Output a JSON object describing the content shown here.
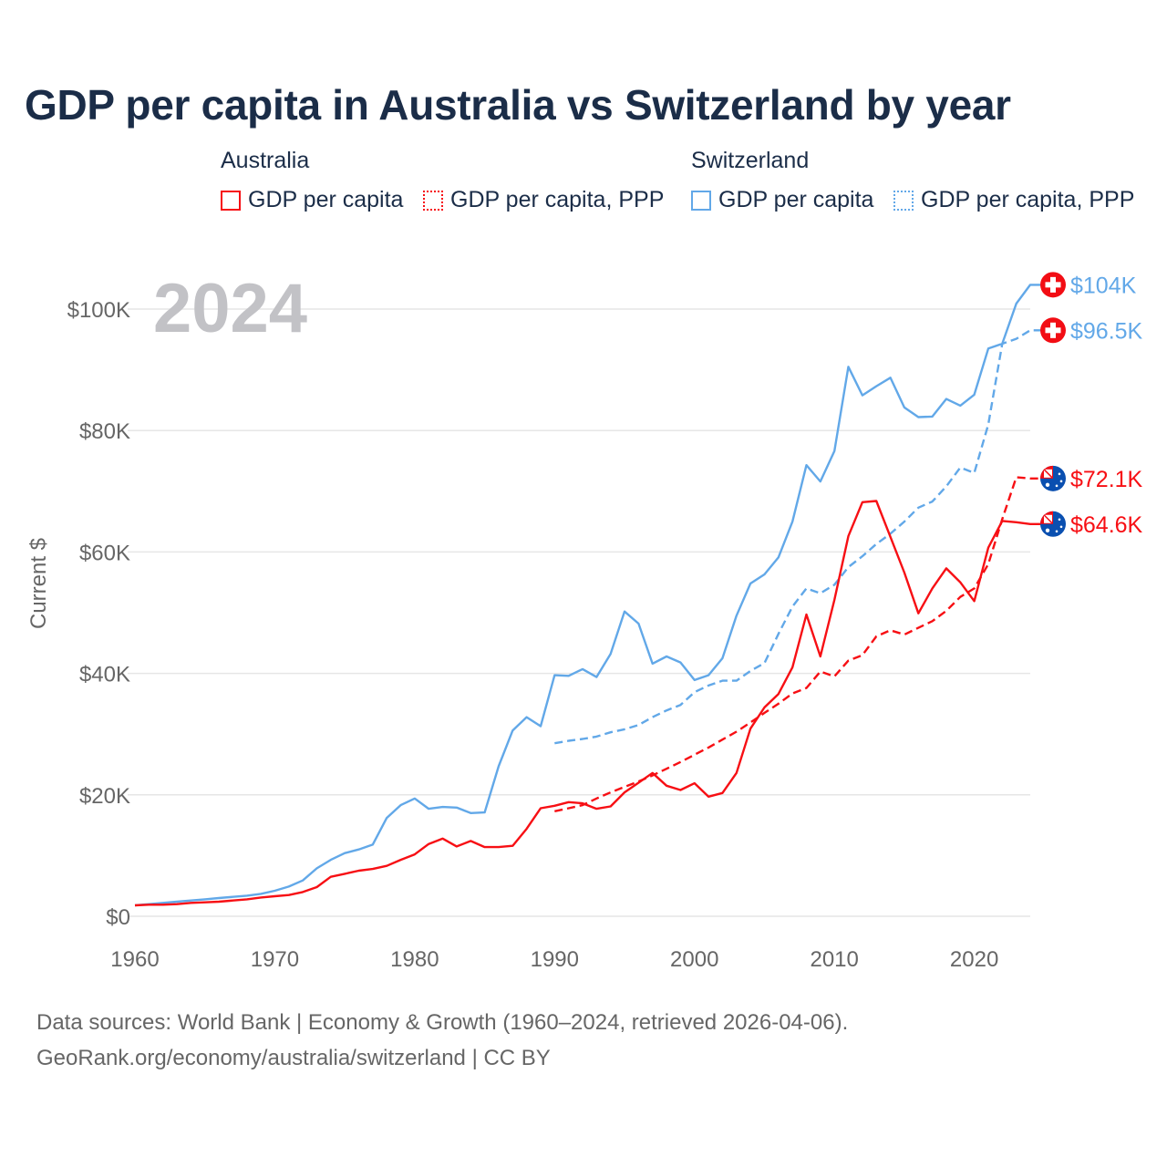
{
  "title": "GDP per capita in Australia vs Switzerland by year",
  "legend": {
    "groups": [
      {
        "label": "Australia",
        "items": [
          "GDP per capita",
          "GDP per capita, PPP"
        ]
      },
      {
        "label": "Switzerland",
        "items": [
          "GDP per capita",
          "GDP per capita, PPP"
        ]
      }
    ]
  },
  "colors": {
    "australia": "#f70f14",
    "switzerland": "#62a8e8"
  },
  "footer": {
    "line1": "Data sources: World Bank | Economy & Growth (1960–2024, retrieved 2026-04-06).",
    "line2": "GeoRank.org/economy/australia/switzerland | CC BY"
  },
  "chart_data": {
    "type": "line",
    "title": "GDP per capita in Australia vs Switzerland by year",
    "ylabel": "Current $",
    "xlabel": "",
    "year_watermark": "2024",
    "xlim": [
      1960,
      2024
    ],
    "ylim": [
      0,
      105000
    ],
    "x_ticks": [
      "1960",
      "1970",
      "1980",
      "1990",
      "2000",
      "2010",
      "2020"
    ],
    "y_ticks": [
      {
        "value": 0,
        "label": "$0"
      },
      {
        "value": 20000,
        "label": "$20K"
      },
      {
        "value": 40000,
        "label": "$40K"
      },
      {
        "value": 60000,
        "label": "$60K"
      },
      {
        "value": 80000,
        "label": "$80K"
      },
      {
        "value": 100000,
        "label": "$100K"
      }
    ],
    "grid": true,
    "series": [
      {
        "name": "Switzerland GDP per capita",
        "country": "switzerland",
        "style": "solid",
        "end_label": "$104K",
        "flag": "switzerland",
        "start_year": 1960,
        "values": [
          1800,
          2000,
          2200,
          2400,
          2600,
          2800,
          3000,
          3200,
          3400,
          3700,
          4200,
          4900,
          5900,
          7900,
          9300,
          10400,
          11000,
          11800,
          16200,
          18300,
          19400,
          17700,
          18000,
          17900,
          17000,
          17100,
          24700,
          30600,
          32800,
          31300,
          39700,
          39600,
          40700,
          39400,
          43200,
          50200,
          48200,
          41600,
          42800,
          41800,
          38900,
          39700,
          42500,
          49500,
          54800,
          56300,
          59100,
          65000,
          74300,
          71600,
          76600,
          90500,
          85800,
          87300,
          88700,
          83800,
          82200,
          82300,
          85200,
          84100,
          85900,
          93500,
          94300,
          100900,
          104000
        ]
      },
      {
        "name": "Switzerland GDP per capita, PPP",
        "country": "switzerland",
        "style": "dashed",
        "end_label": "$96.5K",
        "flag": "switzerland",
        "start_year": 1990,
        "values": [
          28500,
          28900,
          29200,
          29600,
          30300,
          30800,
          31500,
          32800,
          33900,
          34800,
          36900,
          38000,
          38800,
          38800,
          40400,
          41700,
          46500,
          51000,
          54000,
          53200,
          54600,
          57500,
          59300,
          61300,
          63000,
          65000,
          67300,
          68300,
          70800,
          73900,
          73000,
          81000,
          94300,
          95100,
          96500
        ]
      },
      {
        "name": "Australia GDP per capita",
        "country": "australia",
        "style": "solid",
        "end_label": "$64.6K",
        "flag": "australia",
        "start_year": 1960,
        "values": [
          1800,
          1900,
          1900,
          2000,
          2200,
          2300,
          2400,
          2600,
          2800,
          3100,
          3300,
          3500,
          4000,
          4800,
          6500,
          7000,
          7500,
          7800,
          8300,
          9300,
          10200,
          11900,
          12800,
          11500,
          12400,
          11400,
          11400,
          11600,
          14400,
          17800,
          18200,
          18800,
          18600,
          17700,
          18100,
          20400,
          22000,
          23600,
          21500,
          20800,
          21900,
          19700,
          20300,
          23600,
          30900,
          34400,
          36600,
          41000,
          49700,
          42800,
          52100,
          62600,
          68200,
          68400,
          62500,
          56600,
          49900,
          54000,
          57300,
          55000,
          51900,
          60700,
          65100,
          64900,
          64600
        ]
      },
      {
        "name": "Australia GDP per capita, PPP",
        "country": "australia",
        "style": "dashed",
        "end_label": "$72.1K",
        "flag": "australia",
        "start_year": 1990,
        "values": [
          17300,
          17800,
          18300,
          19400,
          20400,
          21300,
          22200,
          23200,
          24300,
          25400,
          26600,
          27800,
          29100,
          30400,
          31900,
          33500,
          35000,
          36700,
          37600,
          40300,
          39500,
          42100,
          43000,
          46100,
          47100,
          46400,
          47500,
          48600,
          50300,
          52600,
          54000,
          58000,
          65400,
          72300,
          72100
        ]
      }
    ]
  }
}
